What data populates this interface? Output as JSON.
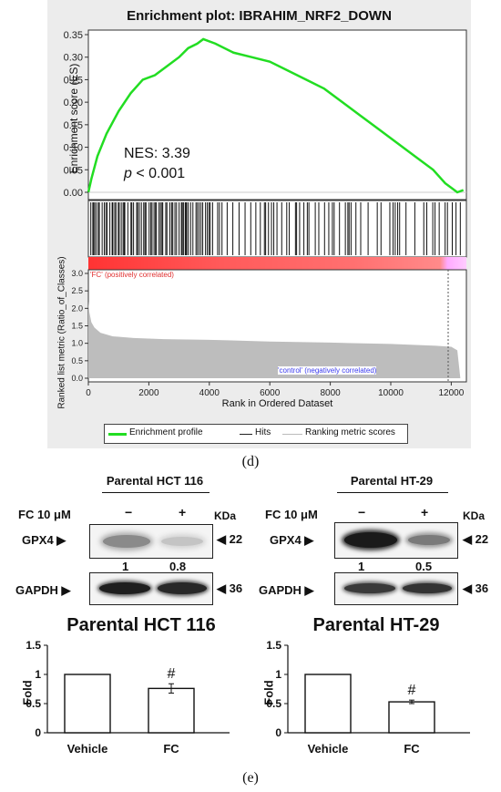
{
  "panel_d": {
    "label": "(d)",
    "title": "Enrichment plot: IBRAHIM_NRF2_DOWN",
    "es_ylabel": "Enrichment score (ES)",
    "es_ticks": [
      "0.35",
      "0.30",
      "0.25",
      "0.20",
      "0.15",
      "0.10",
      "0.05",
      "0.00"
    ],
    "nes_text": "NES: 3.39",
    "p_symbol": "p",
    "p_text": " < 0.001",
    "pos_label": "'FC' (positively correlated)",
    "neg_label": "'control' (negatively correlated)",
    "rank_ylabel": "Ranked list metric (Ratio_of_Classes)",
    "rank_ticks": [
      "3.0",
      "2.5",
      "2.0",
      "1.5",
      "1.0",
      "0.5",
      "0.0"
    ],
    "x_ticks": [
      "0",
      "2000",
      "4000",
      "6000",
      "8000",
      "10000",
      "12000"
    ],
    "xlabel": "Rank in Ordered Dataset",
    "legend": [
      "Enrichment profile",
      "Hits",
      "Ranking metric scores"
    ],
    "colors": {
      "profile": "#22dd22",
      "hits": "#111111",
      "pos": "#ff3333",
      "neg": "#ffaaff",
      "metric": "#bdbdbd",
      "bg": "#ececec"
    }
  },
  "panel_e": {
    "label": "(e)",
    "blots": [
      {
        "title": "Parental HCT 116",
        "treatment": "FC 10 μM",
        "minus": "−",
        "plus": "+",
        "kda": "KDa",
        "protein1": "GPX4 ▶",
        "kda1": "◀ 22",
        "ratio_left": "1",
        "ratio_right": "0.8",
        "protein2": "GAPDH ▶",
        "kda2": "◀ 36"
      },
      {
        "title": "Parental HT-29",
        "treatment": "FC 10 μM",
        "minus": "−",
        "plus": "+",
        "kda": "KDa",
        "protein1": "GPX4 ▶",
        "kda1": "◀ 22",
        "ratio_left": "1",
        "ratio_right": "0.5",
        "protein2": "GAPDH ▶",
        "kda2": "◀ 36"
      }
    ],
    "bar_charts": [
      {
        "title": "Parental HCT 116",
        "ylabel": "Fold",
        "yticks": [
          "1.5",
          "1",
          "0.5",
          "0"
        ],
        "sig": "#"
      },
      {
        "title": "Parental HT-29",
        "ylabel": "Fold",
        "yticks": [
          "1.5",
          "1",
          "0.5",
          "0"
        ],
        "sig": "#"
      }
    ]
  },
  "chart_data": [
    {
      "type": "line",
      "title": "Enrichment plot: IBRAHIM_NRF2_DOWN",
      "xlabel": "Rank in Ordered Dataset",
      "ylabel": "Enrichment score (ES)",
      "xlim": [
        0,
        12500
      ],
      "ylim": [
        0,
        0.35
      ],
      "series": [
        {
          "name": "Enrichment profile",
          "x": [
            0,
            100,
            300,
            600,
            1000,
            1400,
            1800,
            2200,
            2600,
            3000,
            3300,
            3600,
            3800,
            4200,
            4800,
            5400,
            6000,
            6600,
            7200,
            7800,
            8400,
            9000,
            9600,
            10200,
            10800,
            11400,
            11800,
            12000,
            12200,
            12400
          ],
          "y": [
            0.0,
            0.03,
            0.08,
            0.13,
            0.18,
            0.22,
            0.25,
            0.26,
            0.28,
            0.3,
            0.32,
            0.33,
            0.34,
            0.33,
            0.31,
            0.3,
            0.29,
            0.27,
            0.25,
            0.23,
            0.2,
            0.17,
            0.14,
            0.11,
            0.08,
            0.05,
            0.02,
            0.01,
            0.0,
            0.005
          ]
        }
      ],
      "annotations": [
        "NES: 3.39",
        "p < 0.001"
      ]
    },
    {
      "type": "area",
      "title": "",
      "xlabel": "Rank in Ordered Dataset",
      "ylabel": "Ranked list metric (Ratio_of_Classes)",
      "xlim": [
        0,
        12500
      ],
      "ylim": [
        0,
        3.0
      ],
      "series": [
        {
          "name": "Ranking metric scores",
          "x": [
            0,
            30,
            100,
            200,
            400,
            800,
            1500,
            2500,
            4000,
            6000,
            8000,
            10000,
            11500,
            12000,
            12200,
            12300
          ],
          "y": [
            2.2,
            1.9,
            1.6,
            1.45,
            1.3,
            1.2,
            1.15,
            1.12,
            1.1,
            1.05,
            1.02,
            0.98,
            0.93,
            0.9,
            0.8,
            0.0
          ]
        }
      ]
    },
    {
      "type": "bar",
      "title": "Parental HCT 116",
      "categories": [
        "Vehicle",
        "FC"
      ],
      "values": [
        1.0,
        0.76
      ],
      "errors": [
        0.0,
        0.08
      ],
      "ylabel": "Fold",
      "ylim": [
        0,
        1.5
      ]
    },
    {
      "type": "bar",
      "title": "Parental HT-29",
      "categories": [
        "Vehicle",
        "FC"
      ],
      "values": [
        1.0,
        0.53
      ],
      "errors": [
        0.0,
        0.03
      ],
      "ylabel": "Fold",
      "ylim": [
        0,
        1.5
      ]
    }
  ]
}
